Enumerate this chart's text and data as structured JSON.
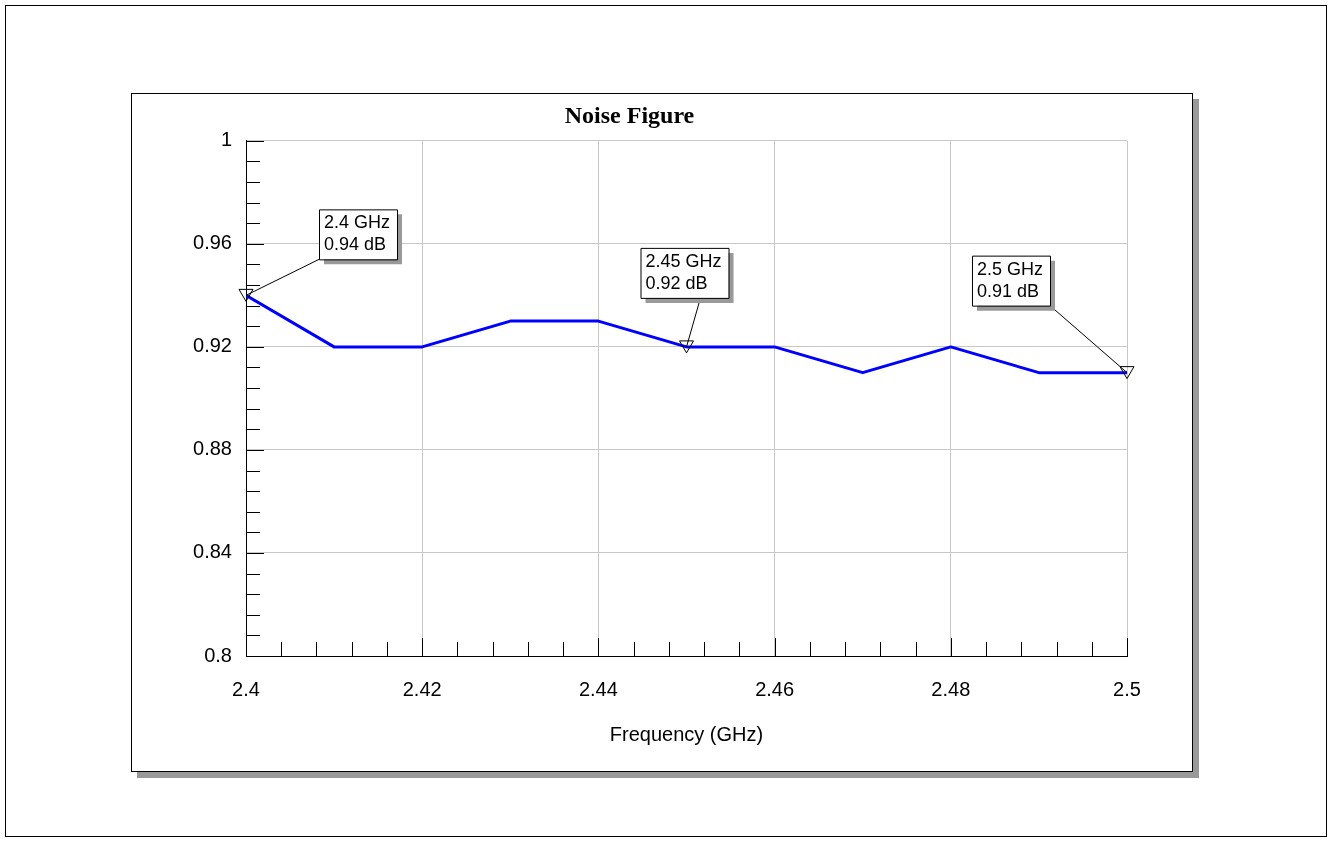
{
  "chart_data": {
    "type": "line",
    "title": "Noise Figure",
    "xlabel": "Frequency (GHz)",
    "x": [
      2.4,
      2.41,
      2.42,
      2.43,
      2.44,
      2.45,
      2.46,
      2.47,
      2.48,
      2.49,
      2.5
    ],
    "series": [
      {
        "color": "#0000ff",
        "values": [
          0.94,
          0.92,
          0.92,
          0.93,
          0.93,
          0.92,
          0.92,
          0.91,
          0.92,
          0.91,
          0.91
        ]
      }
    ],
    "xlim": [
      2.4,
      2.5
    ],
    "xticks": [
      2.4,
      {
        "value": 2.404,
        "label": null
      },
      {
        "value": 2.408,
        "label": null
      },
      {
        "value": 2.412,
        "label": null
      },
      {
        "value": 2.416,
        "label": null
      },
      2.42,
      {
        "value": 2.424,
        "label": null
      },
      {
        "value": 2.428,
        "label": null
      },
      {
        "value": 2.432,
        "label": null
      },
      {
        "value": 2.436,
        "label": null
      },
      2.44,
      {
        "value": 2.444,
        "label": null
      },
      {
        "value": 2.448,
        "label": null
      },
      {
        "value": 2.452,
        "label": null
      },
      {
        "value": 2.456,
        "label": null
      },
      2.46,
      {
        "value": 2.464,
        "label": null
      },
      {
        "value": 2.468,
        "label": null
      },
      {
        "value": 2.472,
        "label": null
      },
      {
        "value": 2.476,
        "label": null
      },
      2.48,
      {
        "value": 2.484,
        "label": null
      },
      {
        "value": 2.488,
        "label": null
      },
      {
        "value": 2.492,
        "label": null
      },
      {
        "value": 2.496,
        "label": null
      },
      2.5
    ],
    "ylim": [
      0.8,
      1
    ],
    "yticks": [
      0.8,
      {
        "value": 0.808,
        "label": null
      },
      {
        "value": 0.816,
        "label": null
      },
      {
        "value": 0.824,
        "label": null
      },
      {
        "value": 0.832,
        "label": null
      },
      0.84,
      {
        "value": 0.848,
        "label": null
      },
      {
        "value": 0.856,
        "label": null
      },
      {
        "value": 0.864,
        "label": null
      },
      {
        "value": 0.872,
        "label": null
      },
      0.88,
      {
        "value": 0.888,
        "label": null
      },
      {
        "value": 0.896,
        "label": null
      },
      {
        "value": 0.904,
        "label": null
      },
      {
        "value": 0.912,
        "label": null
      },
      0.92,
      {
        "value": 0.928,
        "label": null
      },
      {
        "value": 0.936,
        "label": null
      },
      {
        "value": 0.944,
        "label": null
      },
      {
        "value": 0.952,
        "label": null
      },
      0.96,
      {
        "value": 0.968,
        "label": null
      },
      {
        "value": 0.976,
        "label": null
      },
      {
        "value": 0.984,
        "label": null
      },
      {
        "value": 0.992,
        "label": null
      },
      1
    ],
    "grid": true,
    "legend": false,
    "annotations": [
      {
        "text": "2.4 GHz\n0.94 dB",
        "x": 2.4,
        "y": 0.94
      },
      {
        "text": "2.45 GHz\n0.92 dB",
        "x": 2.45,
        "y": 0.92
      },
      {
        "text": "2.5 GHz\n0.91 dB",
        "x": 2.5,
        "y": 0.91
      }
    ]
  }
}
